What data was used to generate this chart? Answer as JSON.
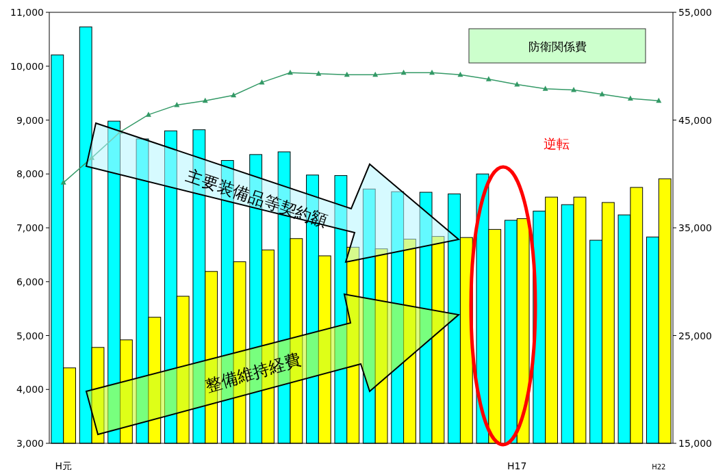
{
  "chart_data": {
    "type": "bar",
    "categories": [
      "H元",
      null,
      null,
      null,
      null,
      null,
      null,
      null,
      null,
      null,
      null,
      null,
      null,
      null,
      null,
      null,
      "H17",
      null,
      null,
      null,
      null,
      "H22"
    ],
    "series": [
      {
        "name": "主要装備品等契約額",
        "color": "#00ffff",
        "values": [
          10210,
          10730,
          8980,
          8650,
          8800,
          8820,
          8250,
          8360,
          8410,
          7980,
          7970,
          7720,
          7670,
          7660,
          7630,
          8000,
          7140,
          7310,
          7430,
          6770,
          7240,
          6830
        ]
      },
      {
        "name": "整備維持経費",
        "color": "#ffff00",
        "values": [
          4400,
          4780,
          4920,
          5340,
          5730,
          6190,
          6370,
          6590,
          6800,
          6480,
          6640,
          6610,
          6790,
          6840,
          6820,
          6970,
          7170,
          7570,
          7570,
          7470,
          7750,
          7910
        ]
      },
      {
        "name": "防衛関係費",
        "type": "line",
        "axis": "y2",
        "color": "#339966",
        "marker": "triangle",
        "values": [
          39200,
          41500,
          43900,
          45500,
          46400,
          46800,
          47300,
          48500,
          49400,
          49300,
          49200,
          49200,
          49400,
          49400,
          49200,
          48800,
          48300,
          47900,
          47800,
          47400,
          47000,
          46800
        ]
      }
    ],
    "ylim": [
      3000,
      11000
    ],
    "yticks": [
      {
        "value": 3000,
        "label": "3,000"
      },
      {
        "value": 4000,
        "label": "4,000"
      },
      {
        "value": 5000,
        "label": "5,000"
      },
      {
        "value": 6000,
        "label": "6,000"
      },
      {
        "value": 7000,
        "label": "7,000"
      },
      {
        "value": 8000,
        "label": "8,000"
      },
      {
        "value": 9000,
        "label": "9,000"
      },
      {
        "value": 10000,
        "label": "10,000"
      },
      {
        "value": 11000,
        "label": "11,000"
      }
    ],
    "y2lim": [
      15000,
      55000
    ],
    "y2ticks": [
      {
        "value": 15000,
        "label": "15,000"
      },
      {
        "value": 25000,
        "label": "25,000"
      },
      {
        "value": 35000,
        "label": "35,000"
      },
      {
        "value": 45000,
        "label": "45,000"
      },
      {
        "value": 55000,
        "label": "55,000"
      }
    ],
    "annotations": [
      "逆転"
    ],
    "grid": false
  }
}
